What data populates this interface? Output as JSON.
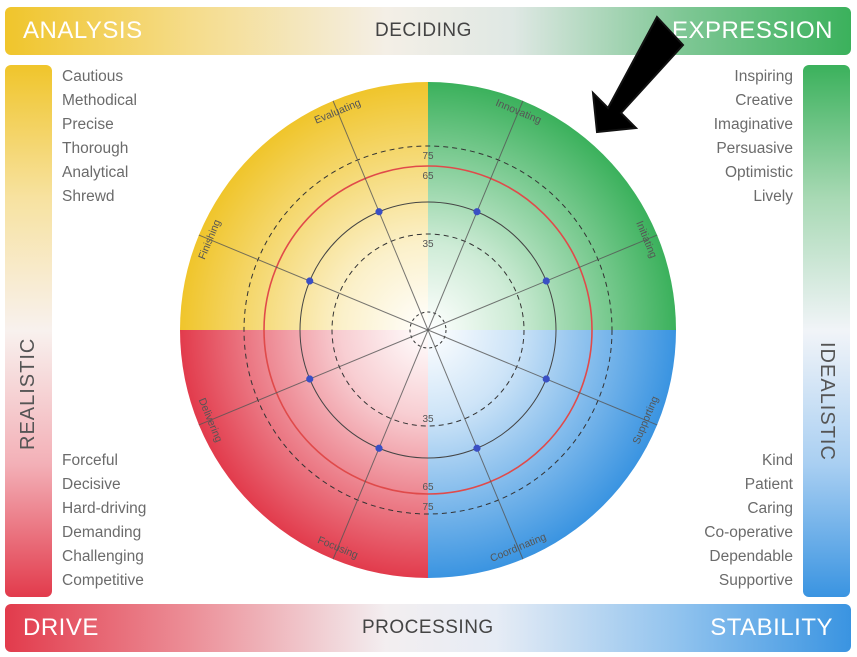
{
  "bars": {
    "top": {
      "left": "ANALYSIS",
      "center": "DECIDING",
      "right": "EXPRESSION"
    },
    "bottom": {
      "left": "DRIVE",
      "center": "PROCESSING",
      "right": "STABILITY"
    },
    "left": "REALISTIC",
    "right": "IDEALISTIC"
  },
  "traits": {
    "top_left": [
      "Cautious",
      "Methodical",
      "Precise",
      "Thorough",
      "Analytical",
      "Shrewd"
    ],
    "top_right": [
      "Inspiring",
      "Creative",
      "Imaginative",
      "Persuasive",
      "Optimistic",
      "Lively"
    ],
    "bottom_left": [
      "Forceful",
      "Decisive",
      "Hard-driving",
      "Demanding",
      "Challenging",
      "Competitive"
    ],
    "bottom_right": [
      "Kind",
      "Patient",
      "Caring",
      "Co-operative",
      "Dependable",
      "Supportive"
    ]
  },
  "wheel": {
    "quadrant_colors": {
      "top_left": "#f0c52b",
      "top_right": "#3bb15c",
      "bottom_left": "#e23b4c",
      "bottom_right": "#3a94e1"
    },
    "spokes": [
      "Innovating",
      "Initiating",
      "Supporting",
      "Coordinating",
      "Focusing",
      "Delivering",
      "Finishing",
      "Evaluating"
    ],
    "spoke_angles": [
      22.5,
      67.5,
      112.5,
      157.5,
      202.5,
      247.5,
      292.5,
      337.5
    ],
    "ring_labels_top": [
      "75",
      "65",
      "35"
    ],
    "ring_labels_bottom": [
      "35",
      "65",
      "75"
    ],
    "points_value": 50
  },
  "colors": {
    "highlight_ring": "#e04a4a",
    "point": "#3a4fc4",
    "arrow": "#000000"
  }
}
